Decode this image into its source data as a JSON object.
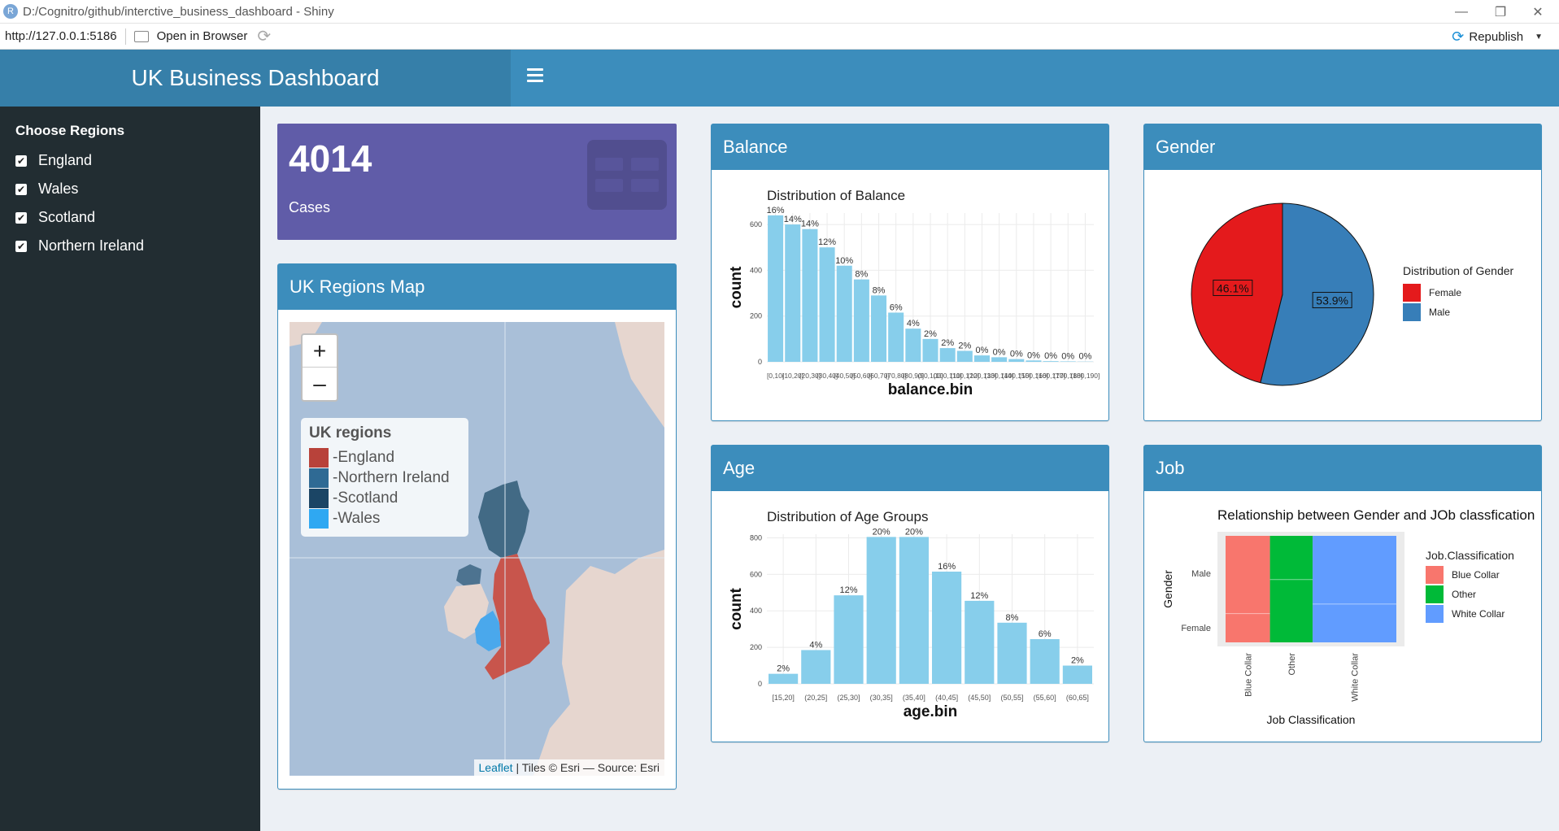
{
  "window": {
    "title": "D:/Cognitro/github/interctive_business_dashboard - Shiny",
    "app_icon_letter": "R"
  },
  "toolbar": {
    "url": "http://127.0.0.1:5186",
    "open_in_browser": "Open in Browser",
    "republish": "Republish"
  },
  "header": {
    "title": "UK Business Dashboard"
  },
  "sidebar": {
    "heading": "Choose Regions",
    "regions": [
      {
        "label": "England",
        "checked": true
      },
      {
        "label": "Wales",
        "checked": true
      },
      {
        "label": "Scotland",
        "checked": true
      },
      {
        "label": "Northern Ireland",
        "checked": true
      }
    ]
  },
  "value_box": {
    "value": "4014",
    "label": "Cases",
    "color": "#605ca8"
  },
  "map_box": {
    "title": "UK Regions Map",
    "legend_title": "UK regions",
    "legend_items": [
      {
        "label": "-England",
        "color": "#b8423a"
      },
      {
        "label": "-Northern Ireland",
        "color": "#2f6a94"
      },
      {
        "label": "-Scotland",
        "color": "#1b4565"
      },
      {
        "label": "-Wales",
        "color": "#2fa8f2"
      }
    ],
    "zoom_in": "+",
    "zoom_out": "–",
    "attribution_link": "Leaflet",
    "attribution_text": "| Tiles © Esri — Source: Esri"
  },
  "balance_box": {
    "title": "Balance"
  },
  "gender_box": {
    "title": "Gender"
  },
  "age_box": {
    "title": "Age"
  },
  "job_box": {
    "title": "Job"
  },
  "chart_data": [
    {
      "id": "balance",
      "type": "bar",
      "title": "Distribution of Balance",
      "xlabel": "balance.bin",
      "ylabel": "count",
      "ylim": [
        0,
        650
      ],
      "yticks": [
        0,
        200,
        400,
        600
      ],
      "categories": [
        "[0,10]",
        "(10,20]",
        "(20,30]",
        "(30,40]",
        "(40,50]",
        "(50,60]",
        "(60,70]",
        "(70,80]",
        "(80,90]",
        "(90,100]",
        "(100,110]",
        "(110,120]",
        "(120,130]",
        "(130,140]",
        "(140,150]",
        "(150,160]",
        "(160,170]",
        "(170,180]",
        "(180,190]"
      ],
      "tick_labels": [
        "[0,10]",
        "(10,20]",
        "(20,30]",
        "(30,40]",
        "(40,50]",
        "(50,60]",
        "(60,70]",
        "(70,80]",
        "(80,90]",
        "(90,100]",
        "(100,110]",
        "(110,120]",
        "(120,130]",
        "(130,140]",
        "(140,150]",
        "(150,160]",
        "(160,170]",
        "(170,180]",
        "(180,190]"
      ],
      "values": [
        640,
        600,
        580,
        500,
        420,
        360,
        290,
        215,
        145,
        100,
        60,
        48,
        28,
        20,
        12,
        6,
        3,
        2,
        1
      ],
      "labels": [
        "16%",
        "14%",
        "14%",
        "12%",
        "10%",
        "8%",
        "8%",
        "6%",
        "4%",
        "2%",
        "2%",
        "2%",
        "0%",
        "0%",
        "0%",
        "0%",
        "0%",
        "0%",
        "0%"
      ],
      "bar_color": "#87ceeb",
      "grid": true
    },
    {
      "id": "gender",
      "type": "pie",
      "legend_title": "Distribution of Gender",
      "categories": [
        "Female",
        "Male"
      ],
      "values": [
        46.1,
        53.9
      ],
      "labels": [
        "46.1%",
        "53.9%"
      ],
      "colors": [
        "#e41a1c",
        "#377eb8"
      ],
      "legend_position": "right"
    },
    {
      "id": "age",
      "type": "bar",
      "title": "Distribution of Age Groups",
      "xlabel": "age.bin",
      "ylabel": "count",
      "ylim": [
        0,
        820
      ],
      "yticks": [
        0,
        200,
        400,
        600,
        800
      ],
      "categories": [
        "[15,20]",
        "(20,25]",
        "(25,30]",
        "(30,35]",
        "(35,40]",
        "(40,45]",
        "(45,50]",
        "(50,55]",
        "(55,60]",
        "(60,65]"
      ],
      "tick_labels": [
        "[15,20]",
        "(20,25]",
        "(25,30]",
        "(30,35]",
        "(35,40]",
        "(40,45]",
        "(45,50]",
        "(50,55]",
        "(55,60]",
        "(60,65]"
      ],
      "values": [
        55,
        185,
        485,
        805,
        805,
        615,
        455,
        335,
        245,
        100
      ],
      "labels": [
        "2%",
        "4%",
        "12%",
        "20%",
        "20%",
        "16%",
        "12%",
        "8%",
        "6%",
        "2%"
      ],
      "bar_color": "#87ceeb",
      "grid": true
    },
    {
      "id": "job",
      "type": "mosaic",
      "title": "Relationship between Gender and JOb classfication",
      "xlabel": "Job Classification",
      "ylabel": "Gender",
      "legend_title": "Job.Classification",
      "x_categories": [
        "Blue Collar",
        "Other",
        "White Collar"
      ],
      "y_categories": [
        "Female",
        "Male"
      ],
      "x_widths": [
        0.26,
        0.25,
        0.49
      ],
      "male_share": [
        0.73,
        0.41,
        0.64
      ],
      "colors": [
        "#f8766d",
        "#00ba38",
        "#619cff"
      ],
      "legend_position": "right"
    }
  ]
}
